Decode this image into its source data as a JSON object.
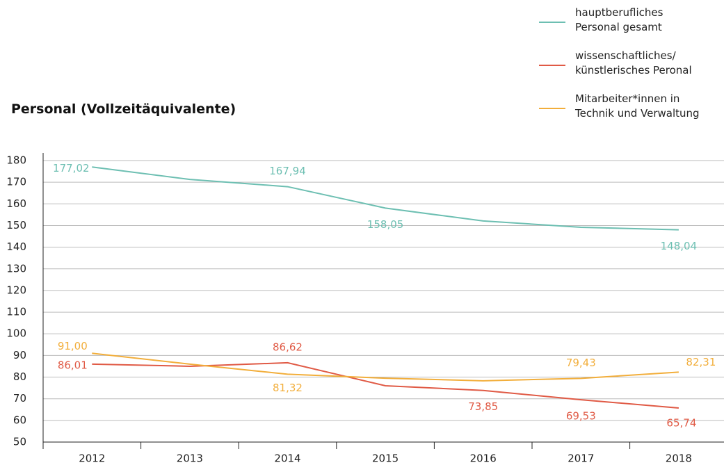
{
  "chart_data": {
    "type": "line",
    "title": "Personal (Vollzeitäquivalente)",
    "categories": [
      "2012",
      "2013",
      "2014",
      "2015",
      "2016",
      "2017",
      "2018"
    ],
    "series": [
      {
        "name": "hauptberufliches\nPersonal gesamt",
        "color": "#6dbfb2",
        "values": [
          177.02,
          171.3,
          167.94,
          158.05,
          152.1,
          149.2,
          148.04
        ],
        "value_labels": [
          "177,02",
          null,
          "167,94",
          "158,05",
          null,
          null,
          "148,04"
        ]
      },
      {
        "name": "wissenschaftliches/\nkünstlerisches Peronal",
        "color": "#e05a45",
        "values": [
          86.01,
          85.0,
          86.62,
          76.0,
          73.85,
          69.53,
          65.74
        ],
        "value_labels": [
          "86,01",
          null,
          "86,62",
          null,
          "73,85",
          "69,53",
          "65,74"
        ]
      },
      {
        "name": "Mitarbeiter*innen in\nTechnik und Verwaltung",
        "color": "#f2ae3b",
        "values": [
          91.0,
          86.0,
          81.32,
          79.5,
          78.3,
          79.43,
          82.31
        ],
        "value_labels": [
          "91,00",
          null,
          "81,32",
          null,
          null,
          "79,43",
          "82,31"
        ]
      }
    ],
    "ylim": [
      50,
      180
    ],
    "yticks": [
      50,
      60,
      70,
      80,
      90,
      100,
      110,
      120,
      130,
      140,
      150,
      160,
      170,
      180
    ],
    "grid": true,
    "legend": "top-right"
  }
}
